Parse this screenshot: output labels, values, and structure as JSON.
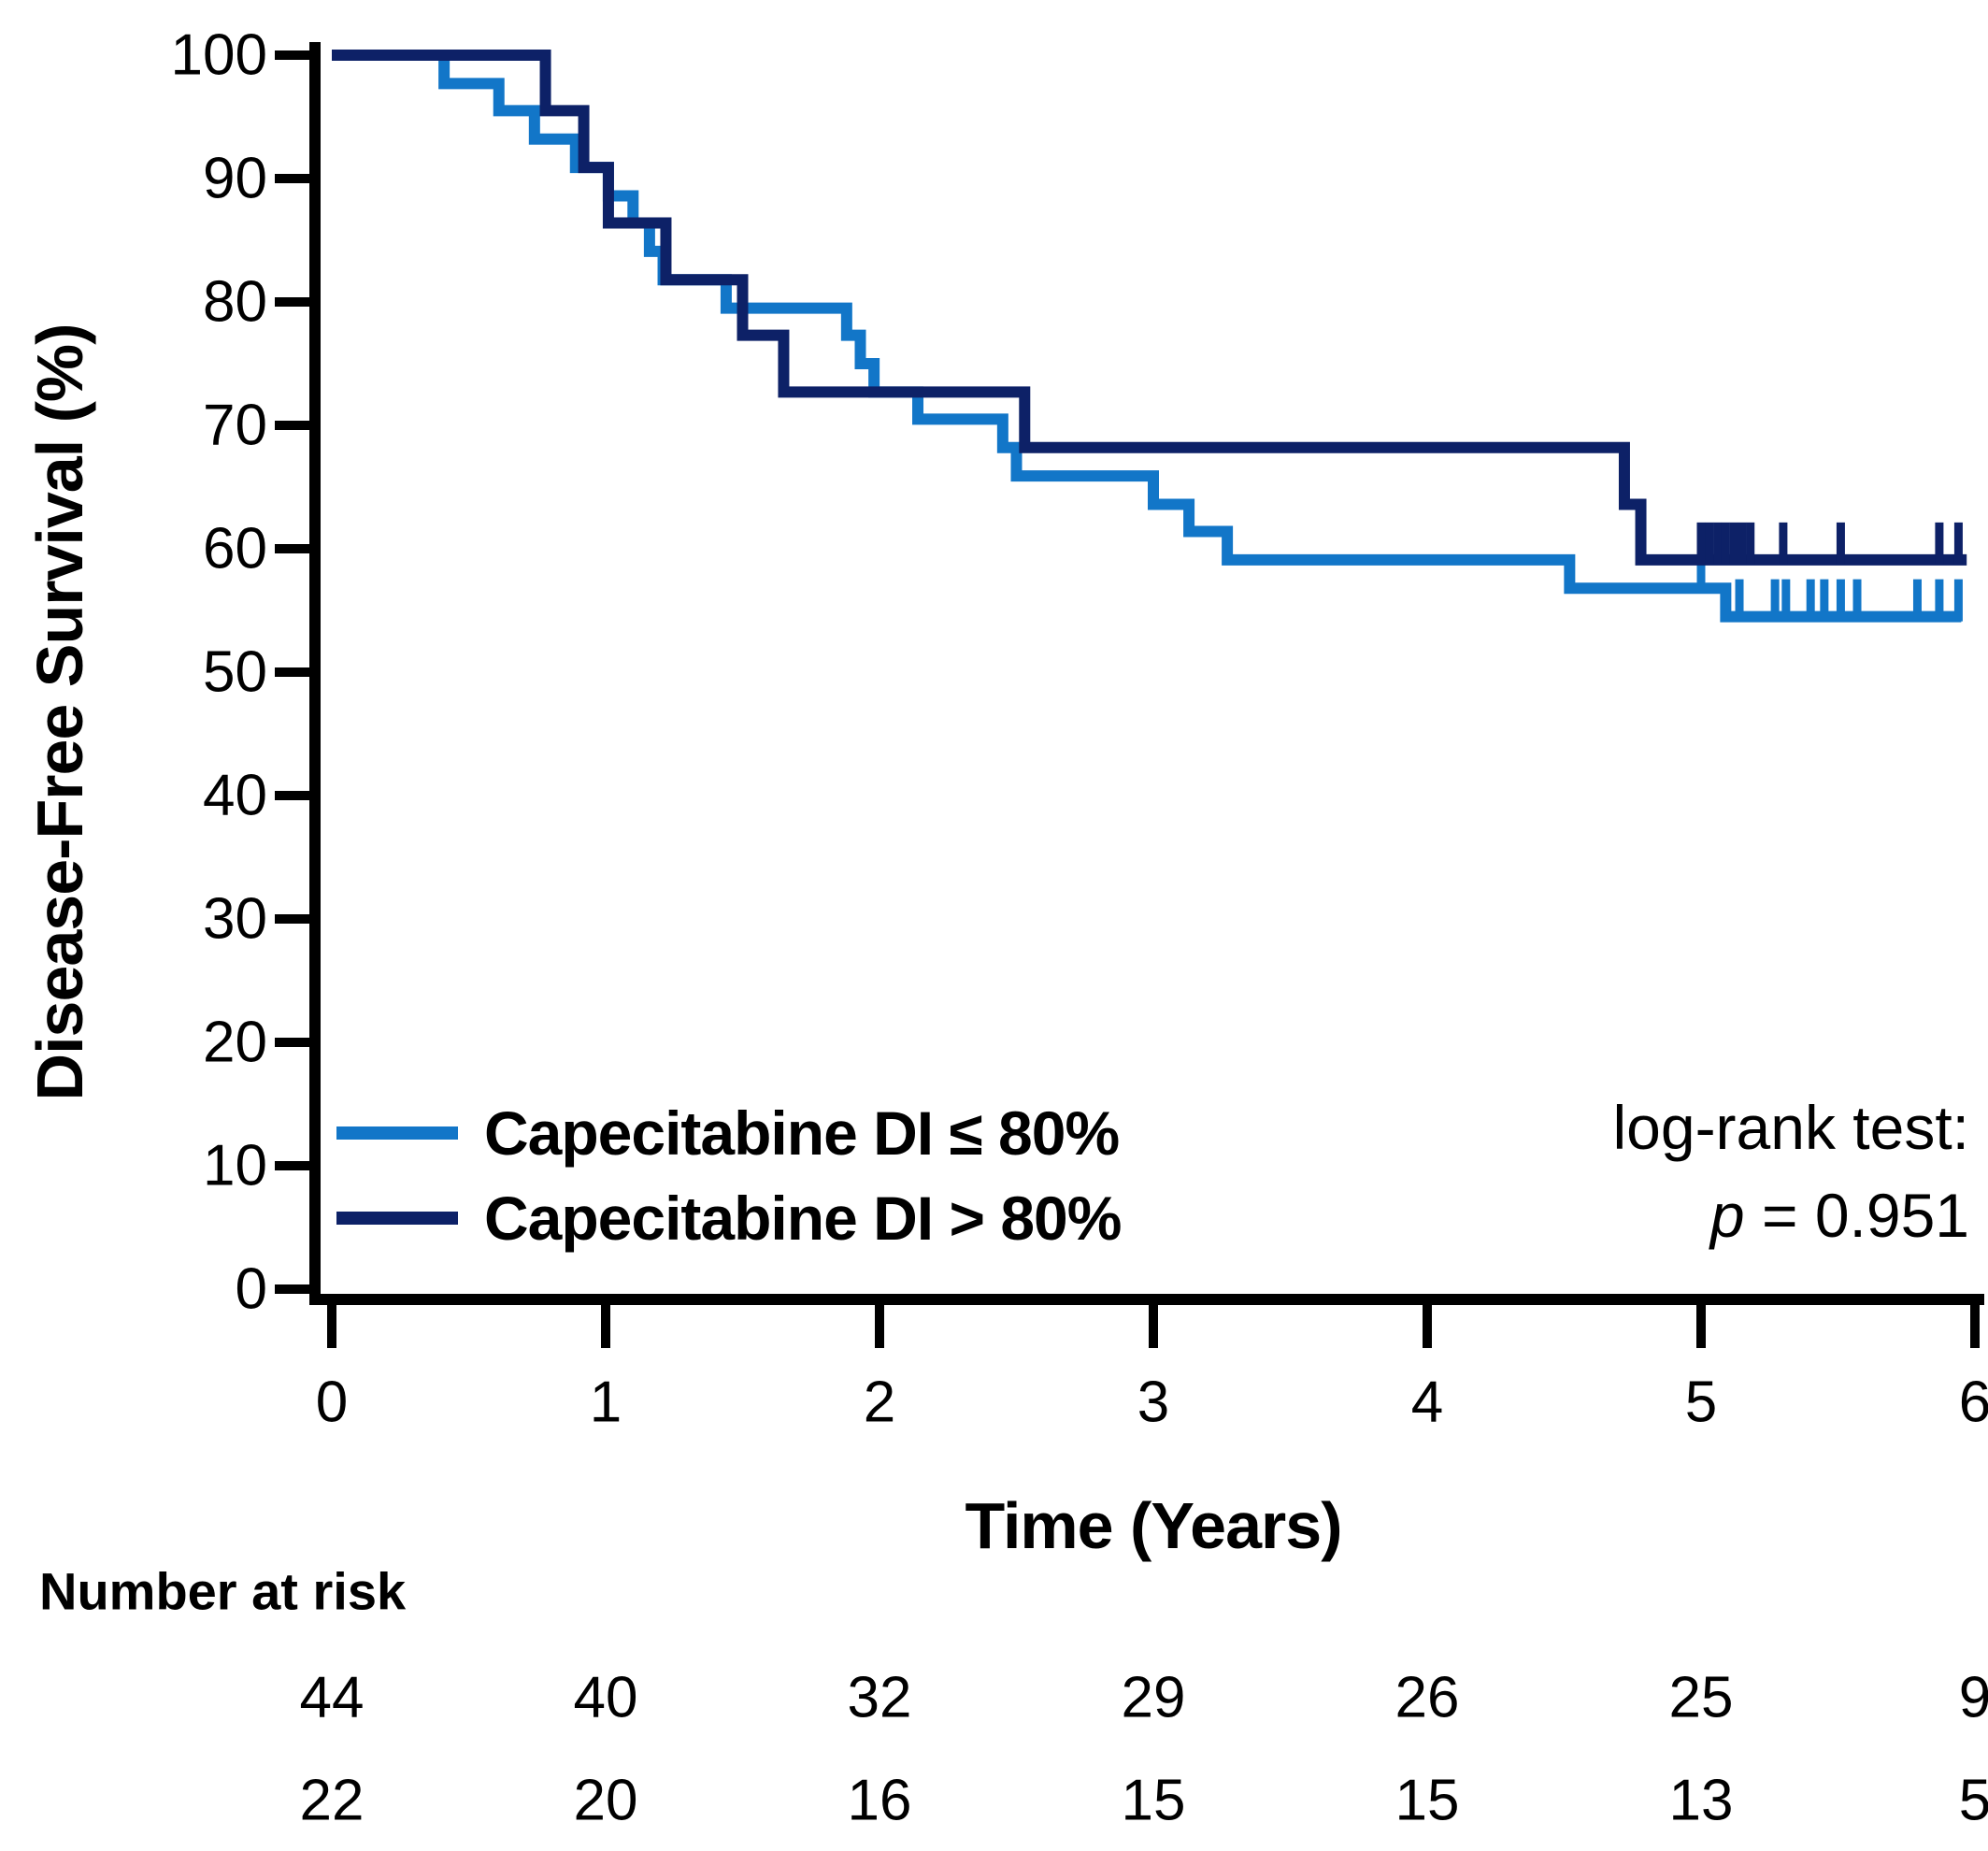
{
  "chart_data": {
    "type": "line",
    "variant": "kaplan-meier-step",
    "title": "",
    "xlabel": "Time (Years)",
    "ylabel": "Disease-Free Survival (%)",
    "xlim": [
      0,
      6
    ],
    "ylim": [
      0,
      100
    ],
    "x_ticks": [
      0,
      1,
      2,
      3,
      4,
      5,
      6
    ],
    "y_ticks": [
      0,
      10,
      20,
      30,
      40,
      50,
      60,
      70,
      80,
      90,
      100
    ],
    "grid": false,
    "legend_position": "lower-left-inside",
    "annotation": {
      "line1": "log-rank test:",
      "p_symbol": "p",
      "p_rest": " = 0.951",
      "p_value": 0.951
    },
    "series": [
      {
        "name": "Capecitabine DI ≤ 80%",
        "color": "#1276c8",
        "start": [
          0,
          100
        ],
        "end_time": 5.95,
        "steps": [
          [
            0.41,
            97.7
          ],
          [
            0.61,
            95.5
          ],
          [
            0.74,
            93.2
          ],
          [
            0.89,
            90.9
          ],
          [
            1.01,
            88.6
          ],
          [
            1.1,
            86.4
          ],
          [
            1.16,
            84.1
          ],
          [
            1.21,
            81.8
          ],
          [
            1.44,
            79.5
          ],
          [
            1.88,
            77.3
          ],
          [
            1.93,
            75.0
          ],
          [
            1.98,
            72.7
          ],
          [
            2.14,
            70.5
          ],
          [
            2.45,
            68.2
          ],
          [
            2.5,
            65.9
          ],
          [
            3.0,
            63.6
          ],
          [
            3.13,
            61.4
          ],
          [
            3.27,
            59.1
          ],
          [
            4.52,
            56.8
          ],
          [
            5.09,
            54.5
          ]
        ],
        "censor_marks": [
          [
            5.0,
            56.8
          ],
          [
            5.14,
            54.5
          ],
          [
            5.27,
            54.5
          ],
          [
            5.31,
            54.5
          ],
          [
            5.4,
            54.5
          ],
          [
            5.45,
            54.5
          ],
          [
            5.51,
            54.5
          ],
          [
            5.57,
            54.5
          ],
          [
            5.79,
            54.5
          ],
          [
            5.87,
            54.5
          ],
          [
            5.94,
            54.5
          ]
        ]
      },
      {
        "name": "Capecitabine DI > 80%",
        "color": "#0d2167",
        "start": [
          0,
          100
        ],
        "end_time": 5.97,
        "steps": [
          [
            0.78,
            95.5
          ],
          [
            0.92,
            90.9
          ],
          [
            1.01,
            86.4
          ],
          [
            1.22,
            81.8
          ],
          [
            1.5,
            77.3
          ],
          [
            1.65,
            72.7
          ],
          [
            2.53,
            68.2
          ],
          [
            4.72,
            63.6
          ],
          [
            4.78,
            59.1
          ]
        ],
        "censor_marks": [
          [
            5.0,
            59.1
          ],
          [
            5.03,
            59.1
          ],
          [
            5.06,
            59.1
          ],
          [
            5.09,
            59.1
          ],
          [
            5.12,
            59.1
          ],
          [
            5.15,
            59.1
          ],
          [
            5.18,
            59.1
          ],
          [
            5.3,
            59.1
          ],
          [
            5.51,
            59.1
          ],
          [
            5.87,
            59.1
          ],
          [
            5.94,
            59.1
          ]
        ]
      }
    ],
    "legend": {
      "entries": [
        "Capecitabine DI ≤ 80%",
        "Capecitabine DI > 80%"
      ]
    },
    "risk_table": {
      "header": "Number at risk",
      "times": [
        0,
        1,
        2,
        3,
        4,
        5,
        6
      ],
      "rows": [
        {
          "name": "Capecitabine DI ≤ 80%",
          "counts": [
            44,
            40,
            32,
            29,
            26,
            25,
            9
          ]
        },
        {
          "name": "Capecitabine DI > 80%",
          "counts": [
            22,
            20,
            16,
            15,
            15,
            13,
            5
          ]
        }
      ]
    }
  }
}
